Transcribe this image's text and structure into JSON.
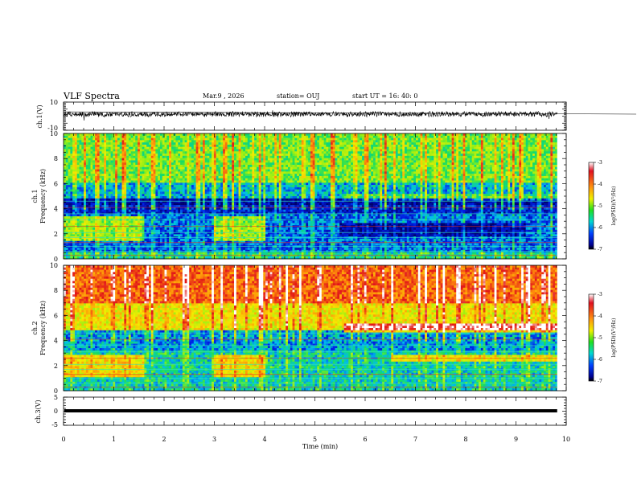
{
  "header": {
    "title": "VLF Spectra",
    "date": "Mar.9 , 2026",
    "station": "station= OUJ",
    "start_time": "start UT = 16: 40: 0"
  },
  "chart_data": [
    {
      "type": "line",
      "name": "ch1-waveform",
      "ylabel": "ch.1(V)",
      "ylim": [
        -10,
        10
      ],
      "yticks": [
        "10",
        "-10"
      ],
      "xlim": [
        0,
        10
      ]
    },
    {
      "type": "heatmap",
      "name": "ch1-spectrogram",
      "ylabel": "Frequency (kHz)",
      "channel_label": "ch.1",
      "yticks": [
        "0",
        "2",
        "4",
        "6",
        "8",
        "10"
      ],
      "ylim": [
        0,
        10
      ],
      "xlim": [
        0,
        10
      ],
      "colorbar": {
        "label": "log(PSD)(V²/Hz)",
        "ticks": [
          "-3",
          "-4",
          "-5",
          "-6",
          "-7"
        ],
        "range": [
          -7,
          -3
        ]
      }
    },
    {
      "type": "heatmap",
      "name": "ch2-spectrogram",
      "ylabel": "Frequency (kHz)",
      "channel_label": "ch.2",
      "yticks": [
        "0",
        "2",
        "4",
        "6",
        "8",
        "10"
      ],
      "ylim": [
        0,
        10
      ],
      "xlim": [
        0,
        10
      ],
      "colorbar": {
        "label": "log(PSD)(V²/Hz)",
        "ticks": [
          "-3",
          "-4",
          "-5",
          "-6",
          "-7"
        ],
        "range": [
          -7,
          -3
        ]
      }
    },
    {
      "type": "line",
      "name": "ch3-waveform",
      "ylabel": "ch.3(V)",
      "ylim": [
        -5,
        5
      ],
      "yticks": [
        "5",
        "0",
        "-5"
      ],
      "xlim": [
        0,
        10
      ],
      "xlabel": "Time (min)",
      "xticks": [
        "0",
        "1",
        "2",
        "3",
        "4",
        "5",
        "6",
        "7",
        "8",
        "9",
        "10"
      ]
    }
  ],
  "colors": {
    "ch1_trace": "#000000",
    "ch3_trace": "#000000"
  }
}
